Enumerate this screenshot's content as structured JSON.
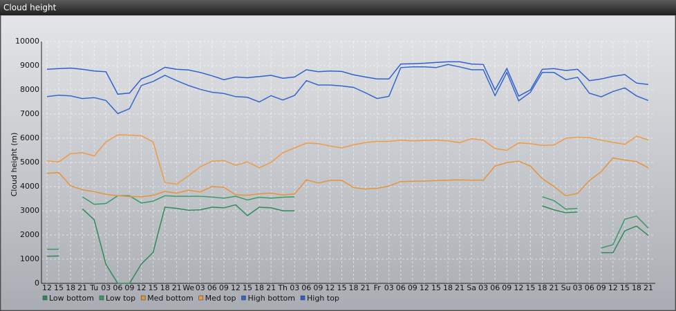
{
  "chart_data": {
    "type": "line",
    "title": "Cloud height",
    "ylabel": "Cloud height (m)",
    "categories": [
      "12",
      "15",
      "18",
      "21",
      "Tu",
      "03",
      "06",
      "09",
      "12",
      "15",
      "18",
      "21",
      "We",
      "03",
      "06",
      "09",
      "12",
      "15",
      "18",
      "21",
      "Th",
      "03",
      "06",
      "09",
      "12",
      "15",
      "18",
      "21",
      "Fr",
      "03",
      "06",
      "09",
      "12",
      "15",
      "18",
      "21",
      "Sa",
      "03",
      "06",
      "09",
      "12",
      "15",
      "18",
      "21",
      "Su",
      "03",
      "06",
      "09",
      "12",
      "15",
      "18",
      "21"
    ],
    "ylim": [
      0,
      10000
    ],
    "yticks": [
      0,
      1000,
      2000,
      3000,
      4000,
      5000,
      6000,
      7000,
      8000,
      9000,
      10000
    ],
    "grid": true,
    "series": [
      {
        "name": "Low bottom",
        "color": "#2e8b57",
        "values": [
          1120,
          1130,
          null,
          3080,
          2630,
          780,
          0,
          0,
          800,
          1280,
          3150,
          3100,
          3020,
          3040,
          3150,
          3120,
          3250,
          2800,
          3150,
          3120,
          3000,
          3000,
          null,
          null,
          null,
          null,
          null,
          null,
          null,
          null,
          null,
          null,
          null,
          null,
          null,
          null,
          null,
          null,
          null,
          null,
          null,
          null,
          3200,
          3040,
          2920,
          2950,
          null,
          1270,
          1270,
          2170,
          2370,
          1980
        ]
      },
      {
        "name": "Low top",
        "color": "#3a9a66",
        "values": [
          1410,
          1410,
          null,
          3580,
          3270,
          3300,
          3620,
          3620,
          3320,
          3400,
          3620,
          3600,
          3600,
          3600,
          3570,
          3520,
          3600,
          3450,
          3560,
          3520,
          3560,
          3580,
          null,
          null,
          null,
          null,
          null,
          null,
          null,
          null,
          null,
          null,
          null,
          null,
          null,
          null,
          null,
          null,
          null,
          null,
          null,
          null,
          3580,
          3420,
          3070,
          3100,
          null,
          1460,
          1600,
          2650,
          2780,
          2280
        ]
      },
      {
        "name": "Med bottom",
        "color": "#e8923a",
        "values": [
          4550,
          4580,
          4030,
          3870,
          3790,
          3680,
          3620,
          3590,
          3580,
          3640,
          3800,
          3730,
          3850,
          3780,
          4000,
          3970,
          3660,
          3640,
          3700,
          3730,
          3650,
          3700,
          4280,
          4150,
          4260,
          4260,
          3960,
          3900,
          3930,
          4020,
          4210,
          4220,
          4230,
          4250,
          4270,
          4280,
          4270,
          4270,
          4850,
          4990,
          5050,
          4850,
          4330,
          4000,
          3620,
          3720,
          4250,
          4620,
          5180,
          5100,
          5030,
          4780
        ]
      },
      {
        "name": "Med top",
        "color": "#f09a45",
        "values": [
          5060,
          5020,
          5360,
          5400,
          5270,
          5850,
          6140,
          6130,
          6100,
          5850,
          4170,
          4100,
          4450,
          4820,
          5050,
          5080,
          4880,
          5020,
          4780,
          5000,
          5400,
          5600,
          5800,
          5780,
          5680,
          5600,
          5730,
          5820,
          5870,
          5870,
          5920,
          5890,
          5910,
          5930,
          5890,
          5820,
          5980,
          5920,
          5570,
          5500,
          5810,
          5780,
          5700,
          5720,
          6000,
          6040,
          6020,
          5920,
          5830,
          5750,
          6080,
          5930
        ]
      },
      {
        "name": "High bottom",
        "color": "#3366cc",
        "values": [
          7720,
          7780,
          7750,
          7640,
          7680,
          7560,
          7020,
          7220,
          8180,
          8350,
          8600,
          8380,
          8180,
          8020,
          7900,
          7850,
          7720,
          7690,
          7500,
          7760,
          7580,
          7770,
          8380,
          8200,
          8200,
          8160,
          8100,
          7880,
          7640,
          7730,
          8920,
          8950,
          8950,
          8920,
          9050,
          8950,
          8830,
          8830,
          7760,
          8720,
          7550,
          7900,
          8720,
          8720,
          8420,
          8520,
          7860,
          7710,
          7930,
          8080,
          7750,
          7560
        ]
      },
      {
        "name": "High top",
        "color": "#2f5fd0",
        "values": [
          8850,
          8880,
          8900,
          8850,
          8780,
          8750,
          7820,
          7870,
          8450,
          8650,
          8930,
          8850,
          8820,
          8720,
          8580,
          8420,
          8530,
          8500,
          8550,
          8600,
          8480,
          8530,
          8830,
          8750,
          8780,
          8760,
          8620,
          8530,
          8450,
          8450,
          9070,
          9080,
          9100,
          9130,
          9160,
          9160,
          9070,
          9050,
          8000,
          8880,
          7740,
          8000,
          8850,
          8880,
          8800,
          8850,
          8380,
          8450,
          8560,
          8630,
          8280,
          8220
        ]
      }
    ]
  }
}
